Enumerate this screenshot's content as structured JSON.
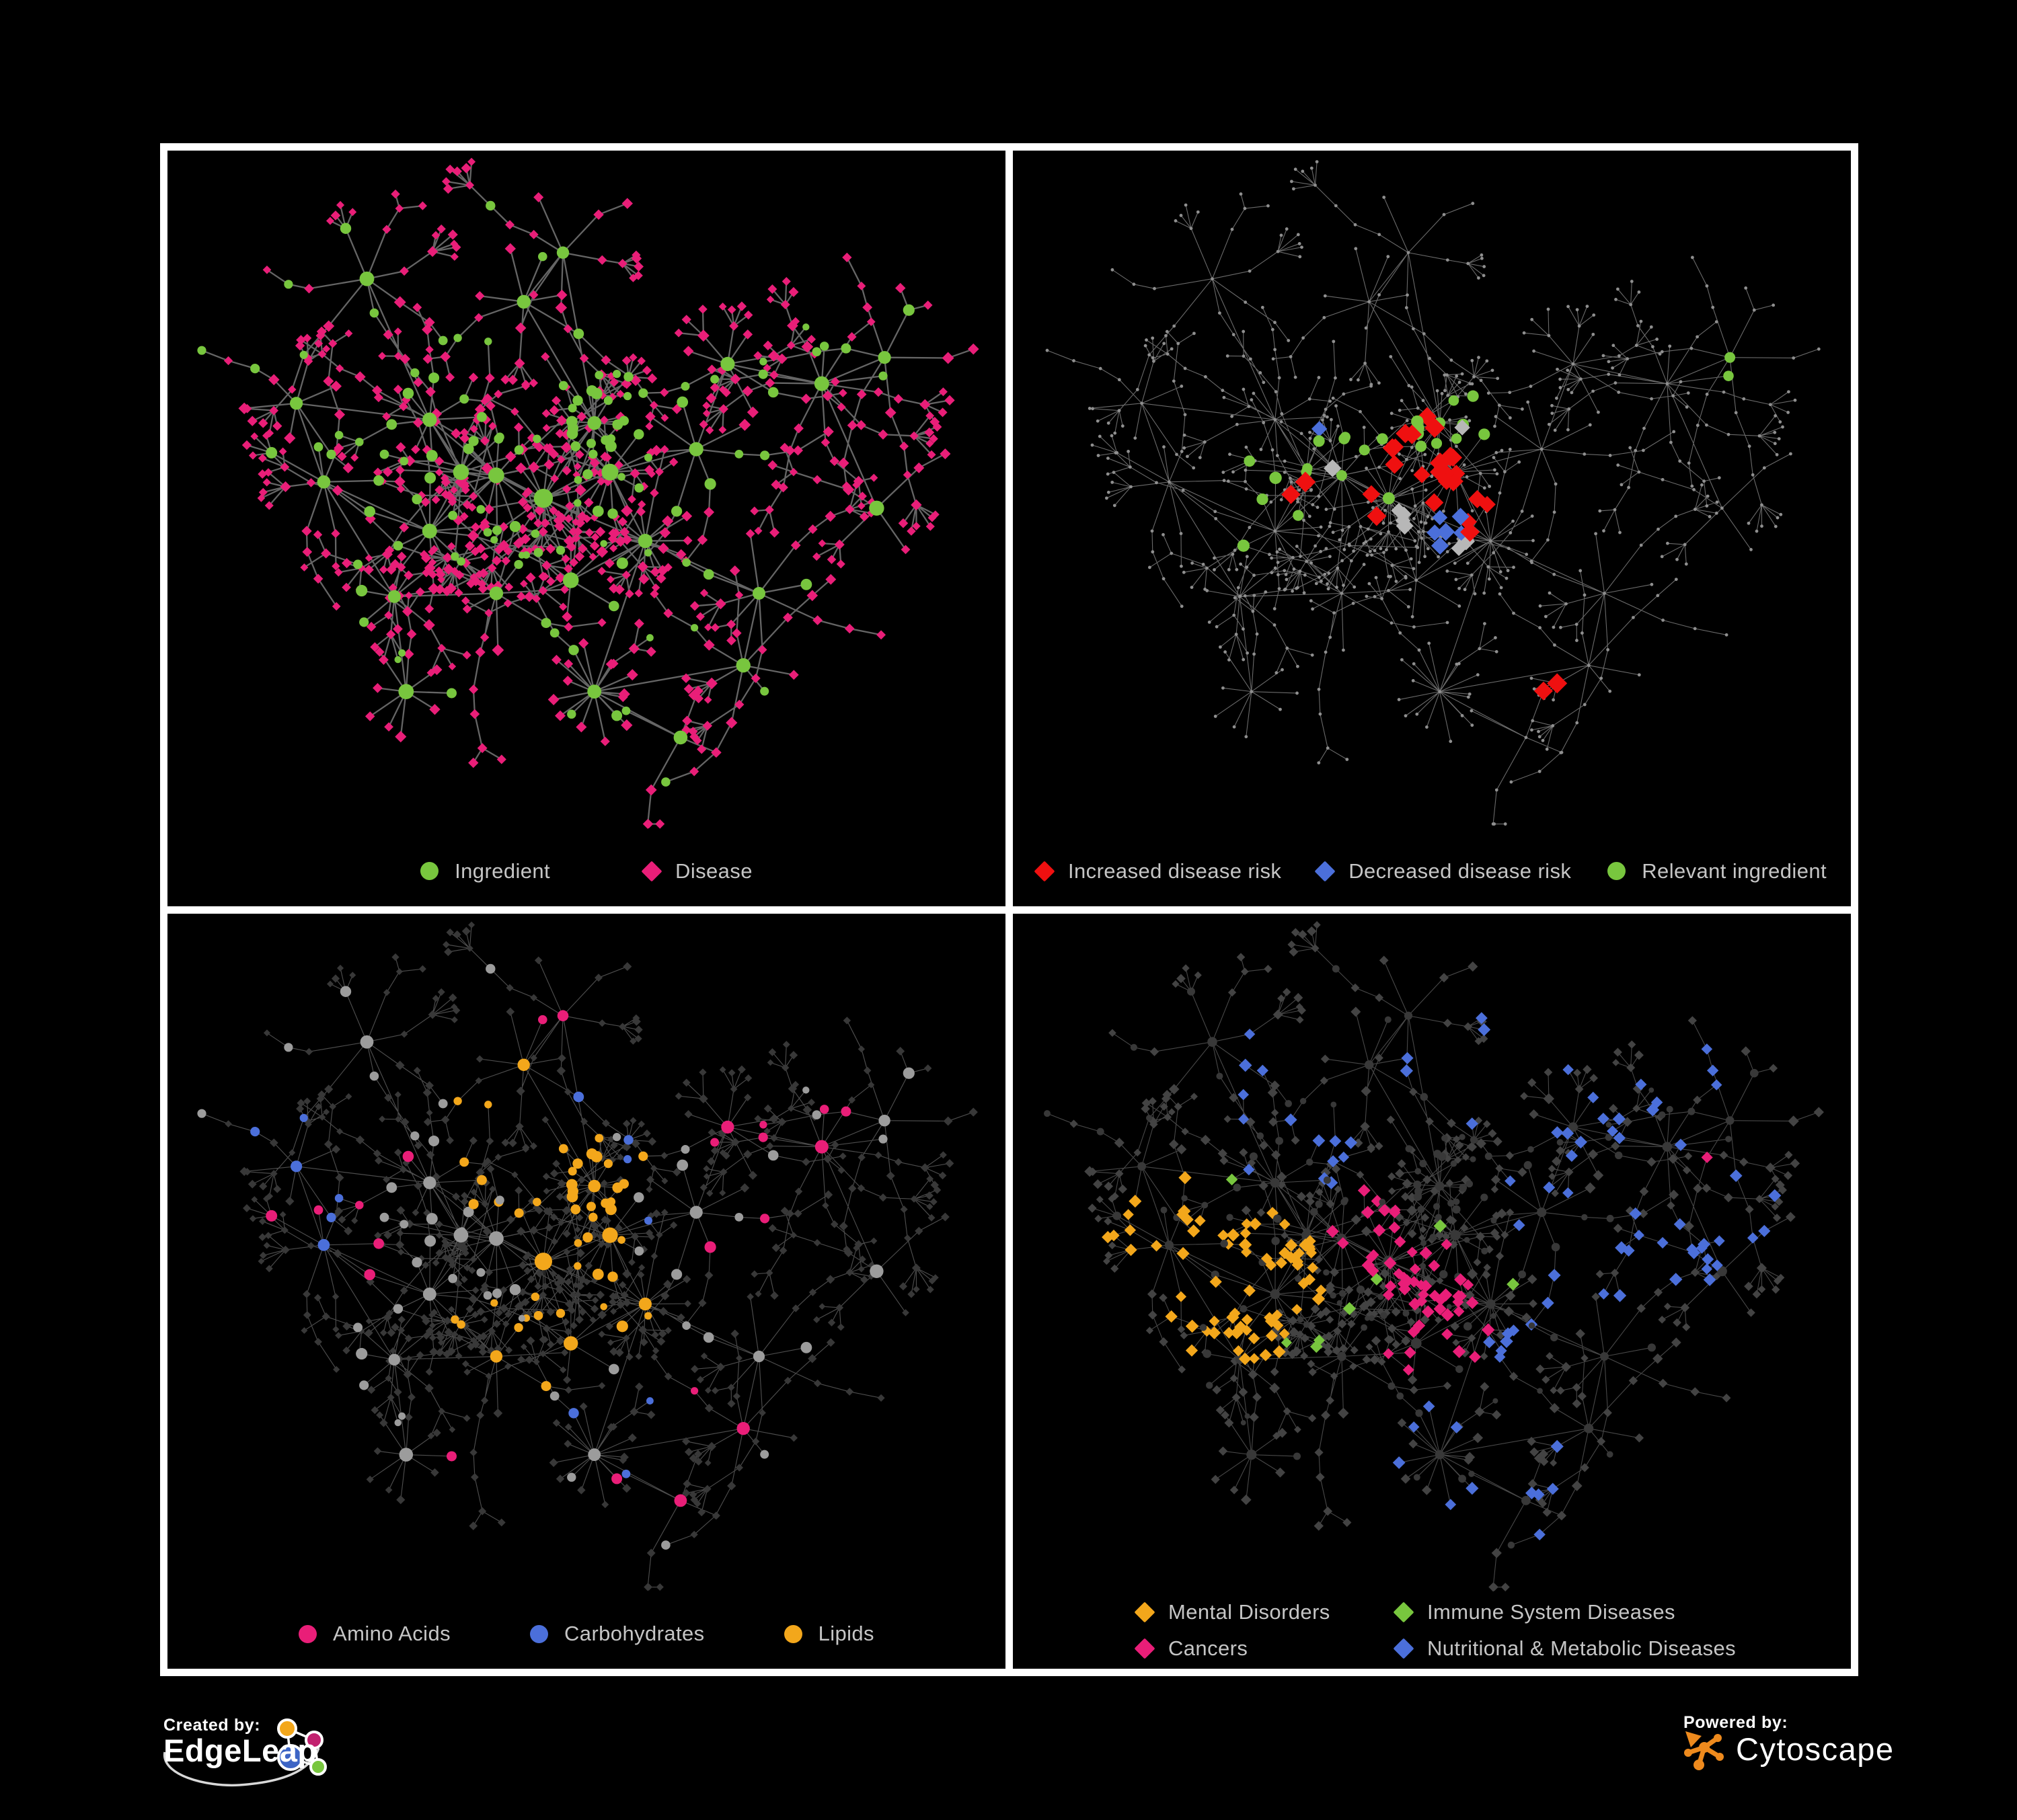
{
  "branding": {
    "created_by_label": "Created by:",
    "created_by_brand": "EdgeLeap",
    "powered_by_label": "Powered by:",
    "powered_by_brand": "Cytoscape"
  },
  "colors": {
    "background": "#000000",
    "frame_border": "#FFFFFF",
    "legend_text": "#C5C5C5",
    "green": "#78C63E",
    "pink": "#E91E78",
    "red": "#EF1010",
    "blue": "#4B6FDA",
    "orange": "#F3A71B",
    "gray_highlight": "#B7B7B7",
    "node_dot": "#8F8F8F",
    "node_gray_light": "#9C9C9C",
    "node_gray_dark": "#383838",
    "node_gray_mid": "#434343",
    "edge_p1": "#6E6E6E",
    "edge_p2": "#7C7C7C",
    "edge_p3": "#808080",
    "edge_p4": "#909090",
    "cytoscape_orange": "#EE8A1D",
    "edgeleap_blue": "#3D65C5",
    "edgeleap_magenta": "#C2216F",
    "edgeleap_green": "#78C63E",
    "edgeleap_orange": "#F3A71B"
  },
  "panels": [
    {
      "name": "ingredient-disease",
      "legend": [
        {
          "shape": "circle",
          "color": "green",
          "label": "Ingredient"
        },
        {
          "shape": "diamond",
          "color": "pink",
          "label": "Disease"
        }
      ],
      "render": {
        "edge": {
          "color": "edge_p1",
          "width": 2.3,
          "opacity": 0.92
        },
        "mode": "typed",
        "ing": {
          "color": "green",
          "r": {
            "hub": 13,
            "hub2": 10.5,
            "mid": 7.5,
            "chain": 6.5,
            "leaf": 6
          }
        },
        "dis": {
          "color": "pink",
          "s": {
            "hub": 7,
            "hub2": 7,
            "mid": 7,
            "chain": 6.5,
            "leaf": 6
          }
        }
      }
    },
    {
      "name": "disease-risk",
      "legend": [
        {
          "shape": "diamond",
          "color": "red",
          "label": "Increased disease risk"
        },
        {
          "shape": "diamond",
          "color": "blue",
          "label": "Decreased disease risk"
        },
        {
          "shape": "circle",
          "color": "green",
          "label": "Relevant ingredient"
        }
      ],
      "render": {
        "edge": {
          "color": "edge_p2",
          "width": 1.1,
          "opacity": 0.85
        },
        "mode": "dots",
        "dot": {
          "color": "node_dot",
          "r": 2.4
        },
        "highlights": [
          {
            "pool": "dis",
            "shape": "diamond",
            "color": "red",
            "size": 12.5,
            "n": 27,
            "spread": 0.07,
            "centers": [
              [
                0.46,
                0.42
              ],
              [
                0.52,
                0.47
              ],
              [
                0.4,
                0.5
              ],
              [
                0.56,
                0.52
              ],
              [
                0.35,
                0.47
              ],
              [
                0.5,
                0.36
              ],
              [
                0.66,
                0.76
              ]
            ]
          },
          {
            "pool": "dis",
            "shape": "diamond",
            "color": "blue",
            "size": 11,
            "n": 7,
            "spread": 0.05,
            "centers": [
              [
                0.335,
                0.42
              ],
              [
                0.86,
                0.29
              ],
              [
                0.52,
                0.55
              ]
            ]
          },
          {
            "pool": "dis",
            "shape": "diamond",
            "color": "gray_highlight",
            "size": 11,
            "n": 8,
            "spread": 0.06,
            "centers": [
              [
                0.4,
                0.44
              ],
              [
                0.52,
                0.42
              ],
              [
                0.56,
                0.58
              ],
              [
                0.46,
                0.52
              ]
            ]
          },
          {
            "pool": "ing",
            "shape": "circle",
            "color": "green",
            "size": 8.5,
            "n": 27,
            "spread": 0.09,
            "centers": [
              [
                0.38,
                0.45
              ],
              [
                0.47,
                0.47
              ],
              [
                0.51,
                0.39
              ],
              [
                0.63,
                0.6
              ],
              [
                0.3,
                0.5
              ],
              [
                0.88,
                0.35
              ]
            ]
          }
        ]
      }
    },
    {
      "name": "chemical-classes",
      "legend": [
        {
          "shape": "circle",
          "color": "pink",
          "label": "Amino Acids"
        },
        {
          "shape": "circle",
          "color": "blue",
          "label": "Carbohydrates"
        },
        {
          "shape": "circle",
          "color": "orange",
          "label": "Lipids"
        }
      ],
      "render": {
        "edge": {
          "color": "edge_p3",
          "width": 1.15,
          "opacity": 0.6
        },
        "mode": "typed",
        "ing": {
          "color": "node_gray_light",
          "r": {
            "hub": 12,
            "hub2": 9.5,
            "mid": 7.5,
            "chain": 6.5,
            "leaf": 6
          }
        },
        "dis": {
          "color": "node_gray_dark",
          "s": {
            "hub": 5.4,
            "hub2": 5.4,
            "mid": 5.4,
            "chain": 5.2,
            "leaf": 5
          }
        },
        "classes": [
          {
            "pool": "ing",
            "color": "orange",
            "n": 52,
            "spread": 0.07,
            "centers": [
              [
                0.51,
                0.38
              ],
              [
                0.46,
                0.44
              ],
              [
                0.42,
                0.31
              ],
              [
                0.55,
                0.6
              ],
              [
                0.38,
                0.66
              ],
              [
                0.48,
                0.52
              ]
            ]
          },
          {
            "pool": "ing",
            "color": "pink",
            "n": 22,
            "spread": 0.24,
            "centers": [
              [
                0.14,
                0.52
              ],
              [
                0.35,
                0.78
              ],
              [
                0.6,
                0.72
              ],
              [
                0.7,
                0.33
              ],
              [
                0.84,
                0.3
              ],
              [
                0.47,
                0.06
              ],
              [
                0.24,
                0.46
              ],
              [
                0.55,
                0.86
              ]
            ]
          },
          {
            "pool": "ing",
            "color": "blue",
            "n": 13,
            "spread": 0.08,
            "centers": [
              [
                0.5,
                0.4
              ],
              [
                0.13,
                0.4
              ],
              [
                0.6,
                0.77
              ],
              [
                0.44,
                0.26
              ]
            ]
          }
        ]
      }
    },
    {
      "name": "disease-categories",
      "legend": [
        {
          "shape": "diamond",
          "color": "orange",
          "label": "Mental Disorders"
        },
        {
          "shape": "diamond",
          "color": "green",
          "label": "Immune System Diseases"
        },
        {
          "shape": "diamond",
          "color": "pink",
          "label": "Cancers"
        },
        {
          "shape": "diamond",
          "color": "blue",
          "label": "Nutritional & Metabolic Diseases"
        }
      ],
      "render": {
        "edge": {
          "color": "edge_p4",
          "width": 1.1,
          "opacity": 0.5
        },
        "mode": "typed",
        "ing": {
          "color": "node_gray_dark",
          "r": {
            "hub": 8,
            "hub2": 7,
            "mid": 5.5,
            "chain": 5,
            "leaf": 4.5
          }
        },
        "dis": {
          "color": "node_gray_mid",
          "s": {
            "hub": 6.4,
            "hub2": 6.4,
            "mid": 6.4,
            "chain": 6,
            "leaf": 5.6
          }
        },
        "classes": [
          {
            "pool": "dis",
            "color": "orange",
            "n": 74,
            "size": 8,
            "spread": 0.05,
            "centers": [
              [
                0.22,
                0.5
              ],
              [
                0.28,
                0.52
              ],
              [
                0.17,
                0.47
              ],
              [
                0.25,
                0.57
              ]
            ]
          },
          {
            "pool": "dis",
            "color": "pink",
            "n": 58,
            "size": 8,
            "spread": 0.08,
            "centers": [
              [
                0.47,
                0.52
              ],
              [
                0.43,
                0.47
              ],
              [
                0.52,
                0.57
              ],
              [
                0.88,
                0.31
              ],
              [
                0.5,
                0.63
              ]
            ]
          },
          {
            "pool": "dis",
            "color": "blue",
            "n": 82,
            "size": 8,
            "spread": 0.12,
            "centers": [
              [
                0.6,
                0.62
              ],
              [
                0.66,
                0.45
              ],
              [
                0.74,
                0.52
              ],
              [
                0.5,
                0.78
              ],
              [
                0.36,
                0.34
              ],
              [
                0.83,
                0.24
              ],
              [
                0.64,
                0.14
              ],
              [
                0.28,
                0.2
              ],
              [
                0.7,
                0.31
              ],
              [
                0.53,
                0.22
              ],
              [
                0.88,
                0.47
              ],
              [
                0.6,
                0.87
              ]
            ]
          },
          {
            "pool": "dis",
            "color": "green",
            "n": 9,
            "size": 8,
            "spread": 0.45,
            "centers": [
              [
                0.3,
                0.42
              ],
              [
                0.45,
                0.5
              ],
              [
                0.6,
                0.57
              ],
              [
                0.36,
                0.62
              ]
            ]
          }
        ]
      }
    }
  ],
  "network": {
    "seed": 1337,
    "extra_center_edges": 58,
    "hubs": [
      [
        0.385,
        0.47,
        15,
        "b"
      ],
      [
        0.34,
        0.465,
        12,
        "b"
      ],
      [
        0.445,
        0.505,
        14,
        "b"
      ],
      [
        0.3,
        0.555,
        10,
        "n"
      ],
      [
        0.51,
        0.39,
        16,
        "k"
      ],
      [
        0.53,
        0.465,
        12,
        "b"
      ],
      [
        0.575,
        0.57,
        14,
        "f"
      ],
      [
        0.3,
        0.385,
        9,
        "n"
      ],
      [
        0.64,
        0.43,
        7,
        "n"
      ],
      [
        0.68,
        0.3,
        9,
        "n"
      ],
      [
        0.8,
        0.33,
        10,
        "n"
      ],
      [
        0.72,
        0.65,
        8,
        "n"
      ],
      [
        0.51,
        0.8,
        17,
        "s"
      ],
      [
        0.385,
        0.65,
        9,
        "n"
      ],
      [
        0.255,
        0.655,
        8,
        "n"
      ],
      [
        0.27,
        0.8,
        9,
        "s"
      ],
      [
        0.7,
        0.76,
        7,
        "n"
      ],
      [
        0.48,
        0.63,
        6,
        "n"
      ],
      [
        0.22,
        0.17,
        7,
        "n"
      ],
      [
        0.47,
        0.13,
        6,
        "n"
      ],
      [
        0.13,
        0.36,
        6,
        "n"
      ],
      [
        0.88,
        0.29,
        6,
        "n"
      ],
      [
        0.62,
        0.87,
        4,
        "n"
      ],
      [
        0.165,
        0.48,
        8,
        "n"
      ],
      [
        0.42,
        0.205,
        7,
        "n"
      ],
      [
        0.87,
        0.52,
        4,
        "n"
      ]
    ],
    "links": [
      [
        0,
        1
      ],
      [
        0,
        2
      ],
      [
        1,
        3
      ],
      [
        2,
        4
      ],
      [
        2,
        5
      ],
      [
        2,
        6
      ],
      [
        0,
        7
      ],
      [
        5,
        8
      ],
      [
        8,
        9
      ],
      [
        9,
        10
      ],
      [
        6,
        11
      ],
      [
        6,
        12
      ],
      [
        3,
        13
      ],
      [
        13,
        14
      ],
      [
        14,
        15
      ],
      [
        11,
        16
      ],
      [
        6,
        17
      ],
      [
        7,
        18
      ],
      [
        4,
        19
      ],
      [
        7,
        20
      ],
      [
        10,
        21
      ],
      [
        12,
        22
      ],
      [
        23,
        20
      ],
      [
        23,
        3
      ],
      [
        23,
        14
      ],
      [
        4,
        24
      ],
      [
        19,
        24
      ],
      [
        0,
        3
      ],
      [
        1,
        7
      ],
      [
        5,
        6
      ],
      [
        2,
        17
      ],
      [
        10,
        25
      ],
      [
        12,
        16
      ]
    ]
  }
}
